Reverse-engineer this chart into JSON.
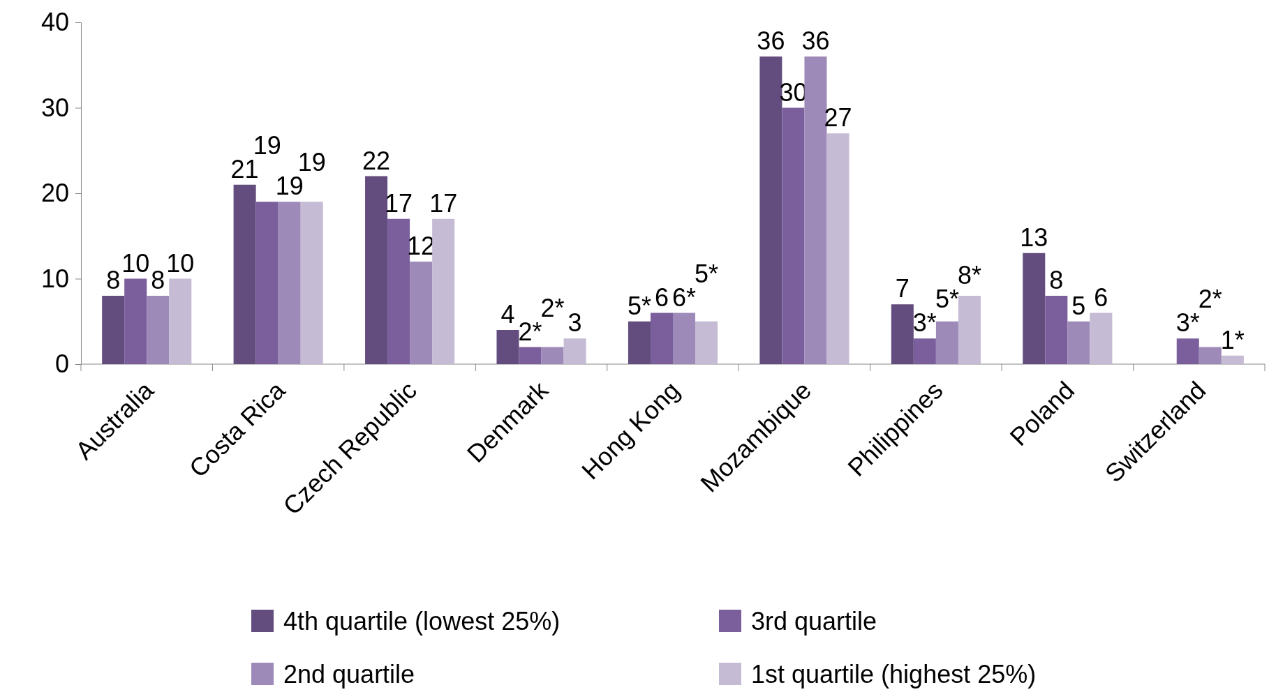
{
  "chart_data": {
    "type": "bar",
    "categories": [
      "Australia",
      "Costa Rica",
      "Czech Republic",
      "Denmark",
      "Hong Kong",
      "Mozambique",
      "Philippines",
      "Poland",
      "Switzerland"
    ],
    "series": [
      {
        "name": "4th quartile  (lowest  25%)",
        "color": "#634d7e",
        "values": [
          8,
          21,
          22,
          4,
          5,
          36,
          7,
          13,
          null
        ],
        "value_labels": [
          "8",
          "21",
          "22",
          "4",
          "5*",
          "36",
          "7",
          "13",
          null
        ]
      },
      {
        "name": "3rd quartile",
        "color": "#7b5e9c",
        "values": [
          10,
          19,
          17,
          2,
          6,
          30,
          3,
          8,
          3
        ],
        "value_labels": [
          "10",
          "19",
          "17",
          "2*",
          "6",
          "30",
          "3*",
          "8",
          "3*"
        ]
      },
      {
        "name": "2nd quartile",
        "color": "#9d8ab8",
        "values": [
          8,
          19,
          12,
          2,
          6,
          36,
          5,
          5,
          2
        ],
        "value_labels": [
          "8",
          "19",
          "12",
          "2*",
          "6*",
          "36",
          "5*",
          "5",
          "2*"
        ]
      },
      {
        "name": "1st quartile  (highest 25%)",
        "color": "#c5bbd4",
        "values": [
          10,
          19,
          17,
          3,
          5,
          27,
          8,
          6,
          1
        ],
        "value_labels": [
          "10",
          "19",
          "17",
          "3",
          "5*",
          "27",
          "8*",
          "6",
          "1*"
        ]
      }
    ],
    "ylim": [
      0,
      40
    ],
    "yticks": [
      0,
      10,
      20,
      30,
      40
    ],
    "grid": false,
    "legend": "bottom"
  }
}
